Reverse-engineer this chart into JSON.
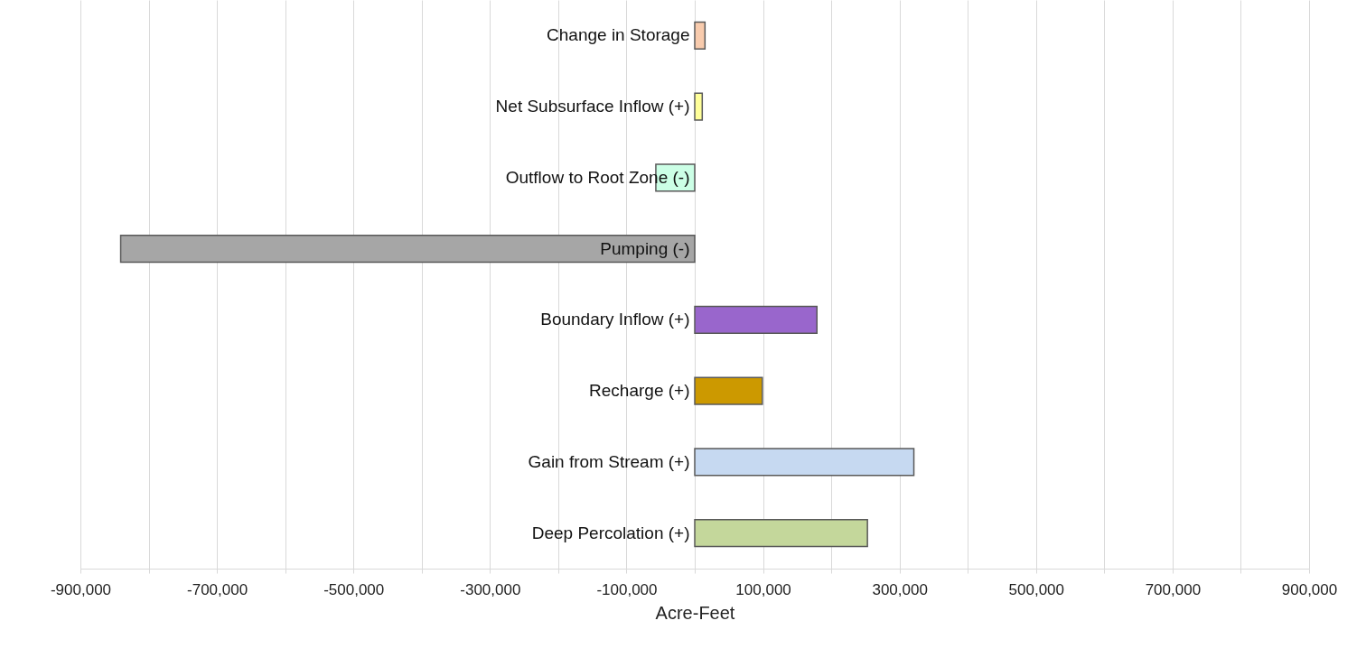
{
  "chart_data": {
    "type": "bar",
    "orientation": "horizontal",
    "xlabel": "Acre-Feet",
    "categories": [
      "Change in Storage",
      "Net Subsurface Inflow (+)",
      "Outflow to Root Zone (-)",
      "Pumping (-)",
      "Boundary Inflow (+)",
      "Recharge (+)",
      "Gain from Stream (+)",
      "Deep Percolation (+)"
    ],
    "values": [
      15000,
      11000,
      -57000,
      -841000,
      179000,
      99000,
      321000,
      253000
    ],
    "colors": [
      "#f8cbad",
      "#ffff99",
      "#ccffe6",
      "#a6a6a6",
      "#9966cc",
      "#cc9900",
      "#c6d9f1",
      "#c4d79b"
    ],
    "xlim": [
      -900000,
      900000
    ],
    "xticks": [
      {
        "value": -900000,
        "label": "-900,000"
      },
      {
        "value": -800000,
        "label": null
      },
      {
        "value": -700000,
        "label": "-700,000"
      },
      {
        "value": -600000,
        "label": null
      },
      {
        "value": -500000,
        "label": "-500,000"
      },
      {
        "value": -400000,
        "label": null
      },
      {
        "value": -300000,
        "label": "-300,000"
      },
      {
        "value": -200000,
        "label": null
      },
      {
        "value": -100000,
        "label": "-100,000"
      },
      {
        "value": 0,
        "label": null
      },
      {
        "value": 100000,
        "label": "100,000"
      },
      {
        "value": 200000,
        "label": null
      },
      {
        "value": 300000,
        "label": "300,000"
      },
      {
        "value": 400000,
        "label": null
      },
      {
        "value": 500000,
        "label": "500,000"
      },
      {
        "value": 600000,
        "label": null
      },
      {
        "value": 700000,
        "label": "700,000"
      },
      {
        "value": 800000,
        "label": null
      },
      {
        "value": 900000,
        "label": "900,000"
      }
    ],
    "grid": true
  }
}
